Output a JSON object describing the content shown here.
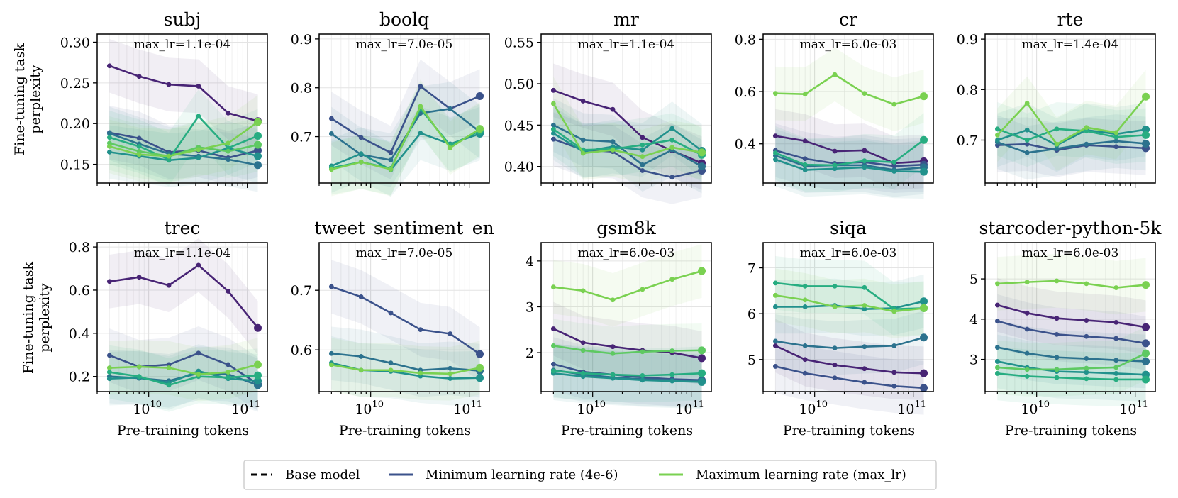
{
  "figure": {
    "ylabel_lines": [
      "Fine-tuning task",
      "perplexity"
    ],
    "xlabel": "Pre-training tokens"
  },
  "legend": {
    "items": [
      {
        "label": "Base model",
        "style": "dashed",
        "color": "#000000"
      },
      {
        "label": "Minimum learning rate (4e-6)",
        "style": "solid",
        "color": "#3b528b"
      },
      {
        "label": "Maximum learning rate (max_lr)",
        "style": "solid",
        "color": "#7ad151"
      }
    ]
  },
  "chart_data": [
    {
      "type": "line",
      "title": "subj",
      "annotation": "max_lr=1.1e-04",
      "xscale": "log",
      "xlim": [
        3000000000.0,
        160000000000.0
      ],
      "ylim": [
        0.127,
        0.31
      ],
      "yticks": [
        0.15,
        0.2,
        0.25,
        0.3
      ],
      "ytick_labels": [
        "0.15",
        "0.20",
        "0.25",
        "0.30"
      ],
      "x": [
        4000000000.0,
        8000000000.0,
        16000000000.0,
        32000000000.0,
        64000000000.0,
        128000000000.0
      ],
      "series": [
        {
          "name": "lr1",
          "color": "#482475",
          "values": [
            0.271,
            0.258,
            0.248,
            0.246,
            0.213,
            0.203
          ]
        },
        {
          "name": "lr2",
          "color": "#3b528b",
          "values": [
            0.189,
            0.182,
            0.165,
            0.167,
            0.158,
            0.167
          ]
        },
        {
          "name": "lr3",
          "color": "#2c728e",
          "values": [
            0.188,
            0.175,
            0.163,
            0.16,
            0.156,
            0.149
          ]
        },
        {
          "name": "lr4",
          "color": "#21918c",
          "values": [
            0.165,
            0.16,
            0.155,
            0.158,
            0.17,
            0.16
          ]
        },
        {
          "name": "lr5",
          "color": "#27ad81",
          "values": [
            0.183,
            0.172,
            0.156,
            0.209,
            0.17,
            0.185
          ]
        },
        {
          "name": "lr6",
          "color": "#5ec962",
          "values": [
            0.176,
            0.166,
            0.16,
            0.171,
            0.166,
            0.174
          ]
        },
        {
          "name": "max_lr",
          "color": "#7ad151",
          "values": [
            0.172,
            0.162,
            0.16,
            0.168,
            0.176,
            0.202
          ]
        }
      ]
    },
    {
      "type": "line",
      "title": "boolq",
      "annotation": "max_lr=7.0e-05",
      "xscale": "log",
      "xlim": [
        3000000000.0,
        160000000000.0
      ],
      "ylim": [
        0.605,
        0.91
      ],
      "yticks": [
        0.7,
        0.8,
        0.9
      ],
      "ytick_labels": [
        "0.7",
        "0.8",
        "0.9"
      ],
      "x": [
        4000000000.0,
        8000000000.0,
        16000000000.0,
        32000000000.0,
        64000000000.0,
        128000000000.0
      ],
      "series": [
        {
          "name": "lr2",
          "color": "#3b528b",
          "values": [
            0.737,
            0.698,
            0.667,
            0.803,
            0.757,
            0.783
          ]
        },
        {
          "name": "lr3",
          "color": "#2c728e",
          "values": [
            0.706,
            0.663,
            0.652,
            0.748,
            0.757,
            0.71
          ]
        },
        {
          "name": "lr4",
          "color": "#21918c",
          "values": [
            0.64,
            0.665,
            0.632,
            0.707,
            0.685,
            0.706
          ]
        },
        {
          "name": "lr5",
          "color": "#27ad81",
          "values": [
            0.636,
            0.648,
            0.635,
            0.757,
            0.682,
            0.712
          ]
        },
        {
          "name": "max_lr",
          "color": "#7ad151",
          "values": [
            0.633,
            0.648,
            0.633,
            0.762,
            0.677,
            0.716
          ]
        }
      ]
    },
    {
      "type": "line",
      "title": "mr",
      "annotation": "max_lr=1.1e-04",
      "xscale": "log",
      "xlim": [
        3000000000.0,
        160000000000.0
      ],
      "ylim": [
        0.38,
        0.56
      ],
      "yticks": [
        0.4,
        0.45,
        0.5,
        0.55
      ],
      "ytick_labels": [
        "0.40",
        "0.45",
        "0.50",
        "0.55"
      ],
      "x": [
        4000000000.0,
        8000000000.0,
        16000000000.0,
        32000000000.0,
        64000000000.0,
        128000000000.0
      ],
      "series": [
        {
          "name": "lr1",
          "color": "#482475",
          "values": [
            0.492,
            0.479,
            0.469,
            0.435,
            0.419,
            0.404
          ]
        },
        {
          "name": "lr2",
          "color": "#3b528b",
          "values": [
            0.433,
            0.42,
            0.418,
            0.395,
            0.387,
            0.395
          ]
        },
        {
          "name": "lr3",
          "color": "#2c728e",
          "values": [
            0.45,
            0.432,
            0.43,
            0.402,
            0.42,
            0.4
          ]
        },
        {
          "name": "lr4",
          "color": "#21918c",
          "values": [
            0.44,
            0.418,
            0.424,
            0.42,
            0.446,
            0.419
          ]
        },
        {
          "name": "lr5",
          "color": "#27ad81",
          "values": [
            0.445,
            0.42,
            0.421,
            0.426,
            0.432,
            0.414
          ]
        },
        {
          "name": "max_lr",
          "color": "#7ad151",
          "values": [
            0.476,
            0.416,
            0.42,
            0.412,
            0.423,
            0.417
          ]
        }
      ]
    },
    {
      "type": "line",
      "title": "cr",
      "annotation": "max_lr=6.0e-03",
      "xscale": "log",
      "xlim": [
        3000000000.0,
        160000000000.0
      ],
      "ylim": [
        0.25,
        0.82
      ],
      "yticks": [
        0.4,
        0.6,
        0.8
      ],
      "ytick_labels": [
        "0.4",
        "0.6",
        "0.8"
      ],
      "x": [
        4000000000.0,
        8000000000.0,
        16000000000.0,
        32000000000.0,
        64000000000.0,
        128000000000.0
      ],
      "series": [
        {
          "name": "lr1",
          "color": "#482475",
          "values": [
            0.43,
            0.411,
            0.372,
            0.375,
            0.326,
            0.333
          ]
        },
        {
          "name": "lr2",
          "color": "#3b528b",
          "values": [
            0.375,
            0.343,
            0.325,
            0.33,
            0.315,
            0.32
          ]
        },
        {
          "name": "lr3",
          "color": "#2c728e",
          "values": [
            0.355,
            0.315,
            0.318,
            0.318,
            0.3,
            0.31
          ]
        },
        {
          "name": "lr4",
          "color": "#21918c",
          "values": [
            0.34,
            0.3,
            0.305,
            0.31,
            0.295,
            0.293
          ]
        },
        {
          "name": "lr5",
          "color": "#27ad81",
          "values": [
            0.365,
            0.32,
            0.318,
            0.335,
            0.33,
            0.415
          ]
        },
        {
          "name": "max_lr",
          "color": "#7ad151",
          "values": [
            0.593,
            0.59,
            0.665,
            0.593,
            0.551,
            0.582
          ]
        }
      ]
    },
    {
      "type": "line",
      "title": "rte",
      "annotation": "max_lr=1.4e-04",
      "xscale": "log",
      "xlim": [
        3000000000.0,
        160000000000.0
      ],
      "ylim": [
        0.615,
        0.91
      ],
      "yticks": [
        0.7,
        0.8,
        0.9
      ],
      "ytick_labels": [
        "0.7",
        "0.8",
        "0.9"
      ],
      "x": [
        4000000000.0,
        8000000000.0,
        16000000000.0,
        32000000000.0,
        64000000000.0,
        128000000000.0
      ],
      "series": [
        {
          "name": "lr2",
          "color": "#3b528b",
          "values": [
            0.69,
            0.692,
            0.68,
            0.69,
            0.687,
            0.684
          ]
        },
        {
          "name": "lr3",
          "color": "#2c728e",
          "values": [
            0.696,
            0.675,
            0.683,
            0.692,
            0.698,
            0.693
          ]
        },
        {
          "name": "lr4",
          "color": "#21918c",
          "values": [
            0.7,
            0.72,
            0.69,
            0.72,
            0.712,
            0.721
          ]
        },
        {
          "name": "lr5",
          "color": "#27ad81",
          "values": [
            0.722,
            0.7,
            0.722,
            0.718,
            0.706,
            0.71
          ]
        },
        {
          "name": "max_lr",
          "color": "#7ad151",
          "values": [
            0.71,
            0.773,
            0.692,
            0.725,
            0.715,
            0.786
          ]
        }
      ]
    },
    {
      "type": "line",
      "title": "trec",
      "annotation": "max_lr=1.1e-04",
      "xscale": "log",
      "xlim": [
        3000000000.0,
        160000000000.0
      ],
      "ylim": [
        0.13,
        0.82
      ],
      "yticks": [
        0.2,
        0.4,
        0.6,
        0.8
      ],
      "ytick_labels": [
        "0.2",
        "0.4",
        "0.6",
        "0.8"
      ],
      "x": [
        4000000000.0,
        8000000000.0,
        16000000000.0,
        32000000000.0,
        64000000000.0,
        128000000000.0
      ],
      "series": [
        {
          "name": "lr1",
          "color": "#482475",
          "values": [
            0.64,
            0.66,
            0.622,
            0.715,
            0.595,
            0.425
          ]
        },
        {
          "name": "lr2",
          "color": "#3b528b",
          "values": [
            0.298,
            0.245,
            0.255,
            0.308,
            0.255,
            0.165
          ]
        },
        {
          "name": "lr3",
          "color": "#2c728e",
          "values": [
            0.2,
            0.192,
            0.18,
            0.215,
            0.21,
            0.16
          ]
        },
        {
          "name": "lr4",
          "color": "#21918c",
          "values": [
            0.19,
            0.195,
            0.17,
            0.225,
            0.19,
            0.18
          ]
        },
        {
          "name": "lr5",
          "color": "#27ad81",
          "values": [
            0.22,
            0.2,
            0.16,
            0.2,
            0.195,
            0.205
          ]
        },
        {
          "name": "max_lr",
          "color": "#7ad151",
          "values": [
            0.24,
            0.245,
            0.24,
            0.21,
            0.22,
            0.255
          ]
        }
      ]
    },
    {
      "type": "line",
      "title": "tweet_sentiment_en",
      "annotation": "max_lr=7.0e-05",
      "xscale": "log",
      "xlim": [
        3000000000.0,
        160000000000.0
      ],
      "ylim": [
        0.53,
        0.78
      ],
      "yticks": [
        0.6,
        0.7
      ],
      "ytick_labels": [
        "0.6",
        "0.7"
      ],
      "x": [
        4000000000.0,
        8000000000.0,
        16000000000.0,
        32000000000.0,
        64000000000.0,
        128000000000.0
      ],
      "series": [
        {
          "name": "lr2",
          "color": "#3b528b",
          "values": [
            0.706,
            0.689,
            0.662,
            0.634,
            0.627,
            0.593
          ]
        },
        {
          "name": "lr3",
          "color": "#2c728e",
          "values": [
            0.594,
            0.589,
            0.578,
            0.566,
            0.569,
            0.565
          ]
        },
        {
          "name": "lr4",
          "color": "#21918c",
          "values": [
            0.578,
            0.566,
            0.564,
            0.556,
            0.552,
            0.553
          ]
        },
        {
          "name": "max_lr",
          "color": "#7ad151",
          "values": [
            0.575,
            0.566,
            0.566,
            0.561,
            0.56,
            0.57
          ]
        }
      ]
    },
    {
      "type": "line",
      "title": "gsm8k",
      "annotation": "max_lr=6.0e-03",
      "xscale": "log",
      "xlim": [
        3000000000.0,
        160000000000.0
      ],
      "ylim": [
        1.15,
        4.4
      ],
      "yticks": [
        2,
        3,
        4
      ],
      "ytick_labels": [
        "2",
        "3",
        "4"
      ],
      "x": [
        4000000000.0,
        8000000000.0,
        16000000000.0,
        32000000000.0,
        64000000000.0,
        128000000000.0
      ],
      "series": [
        {
          "name": "lr1",
          "color": "#482475",
          "values": [
            2.52,
            2.22,
            2.13,
            2.05,
            2.0,
            1.88
          ]
        },
        {
          "name": "lr2",
          "color": "#3b528b",
          "values": [
            1.75,
            1.58,
            1.52,
            1.46,
            1.42,
            1.4
          ]
        },
        {
          "name": "lr3",
          "color": "#2c728e",
          "values": [
            1.62,
            1.52,
            1.46,
            1.42,
            1.4,
            1.38
          ]
        },
        {
          "name": "lr4",
          "color": "#21918c",
          "values": [
            1.55,
            1.48,
            1.44,
            1.4,
            1.38,
            1.36
          ]
        },
        {
          "name": "lr5",
          "color": "#27ad81",
          "values": [
            1.6,
            1.55,
            1.52,
            1.5,
            1.52,
            1.55
          ]
        },
        {
          "name": "lr6",
          "color": "#5ec962",
          "values": [
            2.15,
            2.05,
            1.98,
            2.02,
            2.04,
            2.05
          ]
        },
        {
          "name": "max_lr",
          "color": "#7ad151",
          "values": [
            3.43,
            3.35,
            3.15,
            3.38,
            3.6,
            3.78
          ]
        }
      ]
    },
    {
      "type": "line",
      "title": "siqa",
      "annotation": "max_lr=6.0e-03",
      "xscale": "log",
      "xlim": [
        3000000000.0,
        160000000000.0
      ],
      "ylim": [
        4.3,
        7.55
      ],
      "yticks": [
        5,
        6,
        7
      ],
      "ytick_labels": [
        "5",
        "6",
        "7"
      ],
      "x": [
        4000000000.0,
        8000000000.0,
        16000000000.0,
        32000000000.0,
        64000000000.0,
        128000000000.0
      ],
      "series": [
        {
          "name": "lr1",
          "color": "#482475",
          "values": [
            5.3,
            5.0,
            4.88,
            4.8,
            4.72,
            4.7
          ]
        },
        {
          "name": "lr2",
          "color": "#3b528b",
          "values": [
            4.85,
            4.7,
            4.6,
            4.5,
            4.42,
            4.38
          ]
        },
        {
          "name": "lr3",
          "color": "#2c728e",
          "values": [
            5.4,
            5.3,
            5.25,
            5.28,
            5.3,
            5.48
          ]
        },
        {
          "name": "lr4",
          "color": "#21918c",
          "values": [
            6.15,
            6.15,
            6.18,
            6.1,
            6.12,
            6.27
          ]
        },
        {
          "name": "lr5",
          "color": "#27ad81",
          "values": [
            6.67,
            6.6,
            6.6,
            6.57,
            6.1,
            6.12
          ]
        },
        {
          "name": "max_lr",
          "color": "#7ad151",
          "values": [
            6.4,
            6.3,
            6.15,
            6.18,
            6.05,
            6.12
          ]
        }
      ]
    },
    {
      "type": "line",
      "title": "starcoder-python-5k",
      "annotation": "max_lr=6.0e-03",
      "xscale": "log",
      "xlim": [
        3000000000.0,
        160000000000.0
      ],
      "ylim": [
        2.2,
        5.9
      ],
      "yticks": [
        3,
        4,
        5
      ],
      "ytick_labels": [
        "3",
        "4",
        "5"
      ],
      "x": [
        4000000000.0,
        8000000000.0,
        16000000000.0,
        32000000000.0,
        64000000000.0,
        128000000000.0
      ],
      "series": [
        {
          "name": "lr1",
          "color": "#482475",
          "values": [
            4.35,
            4.15,
            4.02,
            3.97,
            3.92,
            3.8
          ]
        },
        {
          "name": "lr2",
          "color": "#3b528b",
          "values": [
            3.95,
            3.75,
            3.62,
            3.57,
            3.52,
            3.4
          ]
        },
        {
          "name": "lr3",
          "color": "#2c728e",
          "values": [
            3.3,
            3.15,
            3.05,
            3.02,
            2.98,
            2.95
          ]
        },
        {
          "name": "lr4",
          "color": "#21918c",
          "values": [
            2.95,
            2.8,
            2.7,
            2.68,
            2.65,
            2.62
          ]
        },
        {
          "name": "lr5",
          "color": "#27ad81",
          "values": [
            2.65,
            2.58,
            2.55,
            2.52,
            2.5,
            2.5
          ]
        },
        {
          "name": "lr6",
          "color": "#5ec962",
          "values": [
            2.8,
            2.75,
            2.75,
            2.78,
            2.8,
            3.15
          ]
        },
        {
          "name": "max_lr",
          "color": "#7ad151",
          "values": [
            4.88,
            4.92,
            4.95,
            4.88,
            4.78,
            4.85
          ]
        }
      ]
    }
  ]
}
